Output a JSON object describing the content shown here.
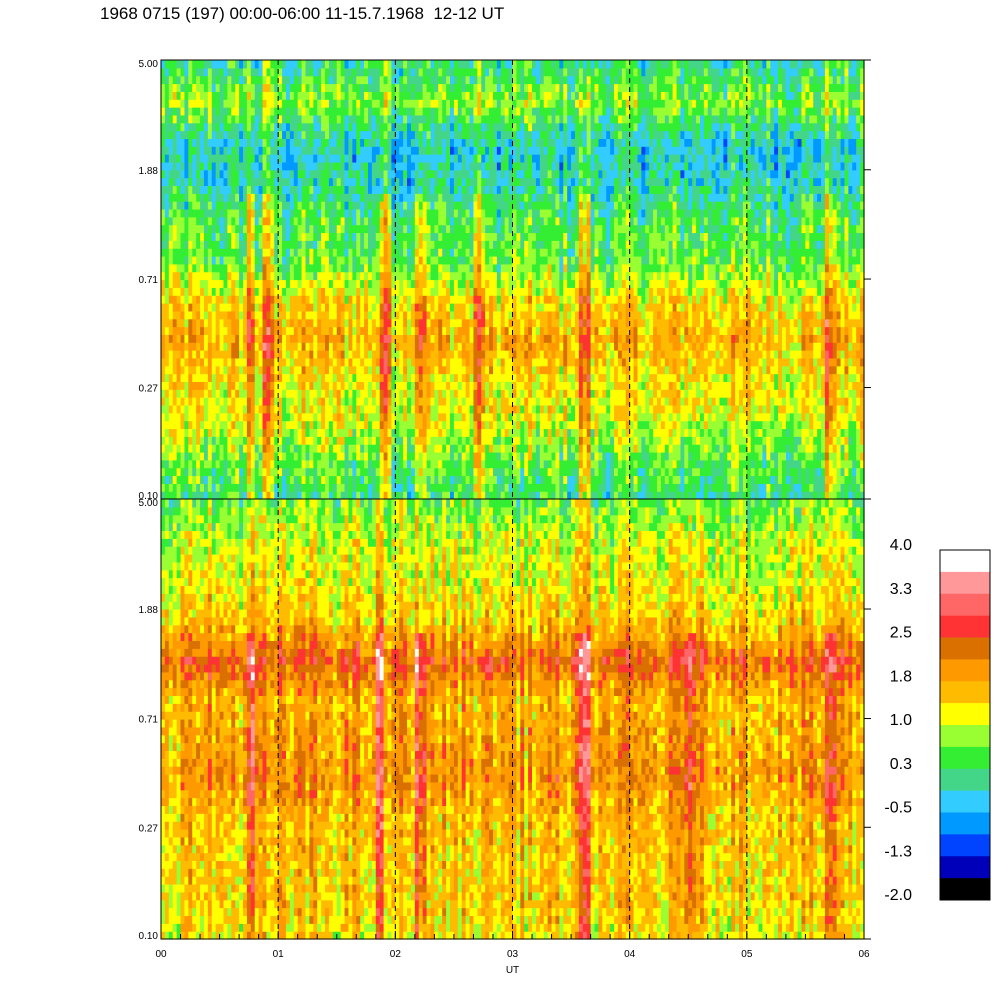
{
  "title": "1968 0715 (197) 00:00-06:00 11-15.7.1968  12-12 UT",
  "chart_data": {
    "type": "heatmap",
    "xlabel": "UT",
    "x_ticks": [
      "00",
      "01",
      "02",
      "03",
      "04",
      "05",
      "06"
    ],
    "x_range": [
      0,
      6
    ],
    "panels": [
      {
        "y_ticks": [
          "0.10",
          "0.27",
          "0.71",
          "1.88",
          "5.00"
        ],
        "y_range": [
          0.1,
          5.0
        ],
        "y_scale": "log",
        "profile": [
          0.2,
          0.6,
          1.1,
          1.3,
          1.7,
          1.3,
          0.5,
          0.4,
          -0.1,
          -0.2,
          0.7,
          0.1
        ],
        "event_columns_ut": [
          0.75,
          0.9,
          1.9,
          2.2,
          2.7,
          3.6,
          5.7
        ]
      },
      {
        "y_ticks": [
          "0.10",
          "0.27",
          "0.71",
          "1.88",
          "5.00"
        ],
        "y_range": [
          0.1,
          5.0
        ],
        "y_scale": "log",
        "profile": [
          1.3,
          1.5,
          1.5,
          1.6,
          2.0,
          1.8,
          1.7,
          2.4,
          1.5,
          1.2,
          1.0,
          0.6
        ],
        "event_columns_ut": [
          0.75,
          1.85,
          2.2,
          3.6,
          4.5,
          5.7
        ]
      }
    ],
    "colorbar": {
      "labels": [
        "4.0",
        "3.3",
        "2.5",
        "1.8",
        "1.0",
        "0.3",
        "-0.5",
        "-1.3",
        "-2.0"
      ],
      "colors": [
        "#ffffff",
        "#ff9999",
        "#ff6666",
        "#ff3333",
        "#d97000",
        "#ff9900",
        "#ffbb00",
        "#ffff00",
        "#99ff33",
        "#33ee33",
        "#44d688",
        "#33ccff",
        "#0099ff",
        "#0044ff",
        "#0000bb",
        "#000000"
      ]
    },
    "dashed_lines_ut": [
      1,
      2,
      3,
      4,
      5
    ]
  }
}
